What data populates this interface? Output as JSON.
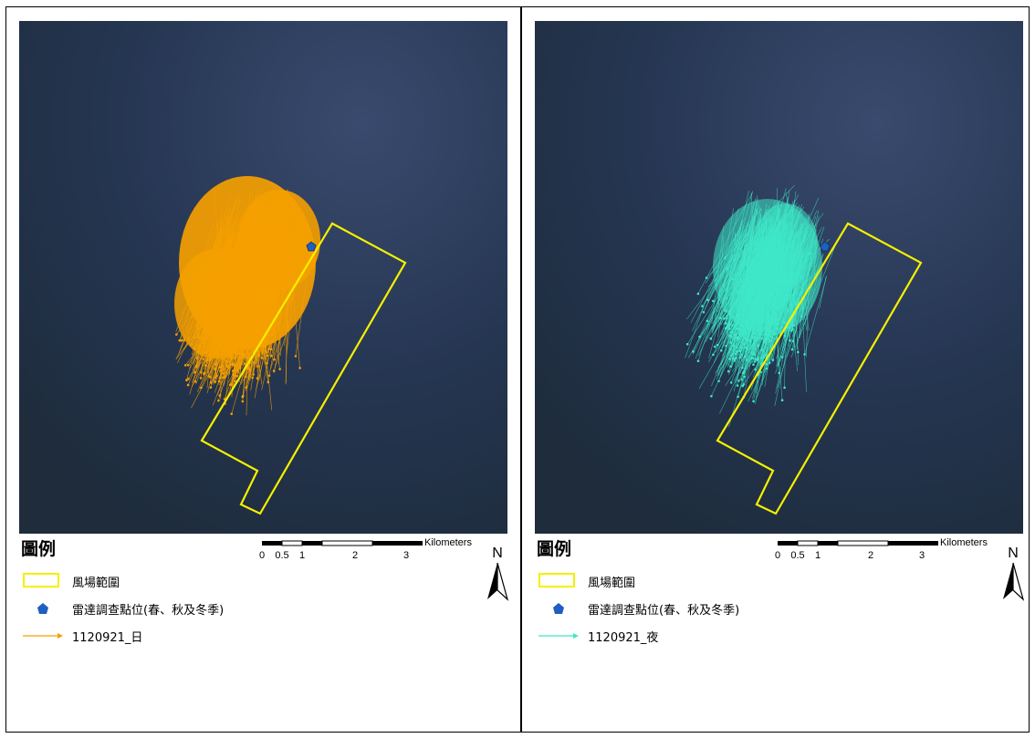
{
  "panels": [
    {
      "id": "day",
      "track_color": "#f5a000",
      "legend": {
        "title": "圖例",
        "items": [
          {
            "label": "風場範圍",
            "symbol": "yellow-rectangle-outline"
          },
          {
            "label": "雷達調查點位(春、秋及冬季)",
            "symbol": "blue-pentagon-marker"
          },
          {
            "label": "1120921_日",
            "symbol": "orange-arrow-line"
          }
        ]
      },
      "scalebar": {
        "unit": "Kilometers",
        "ticks": [
          "0",
          "0.5",
          "1",
          "2",
          "3"
        ]
      },
      "north_label": "N"
    },
    {
      "id": "night",
      "track_color": "#3ee8c8",
      "legend": {
        "title": "圖例",
        "items": [
          {
            "label": "風場範圍",
            "symbol": "yellow-rectangle-outline"
          },
          {
            "label": "雷達調查點位(春、秋及冬季)",
            "symbol": "blue-pentagon-marker"
          },
          {
            "label": "1120921_夜",
            "symbol": "cyan-arrow-line"
          }
        ]
      },
      "scalebar": {
        "unit": "Kilometers",
        "ticks": [
          "0",
          "0.5",
          "1",
          "2",
          "3"
        ]
      },
      "north_label": "N"
    }
  ],
  "colors": {
    "sea": "#223247",
    "wind_farm_boundary": "#f5f000",
    "radar_point": "#1f5fbf",
    "day_tracks": "#f5a000",
    "night_tracks": "#3ee8c8"
  }
}
